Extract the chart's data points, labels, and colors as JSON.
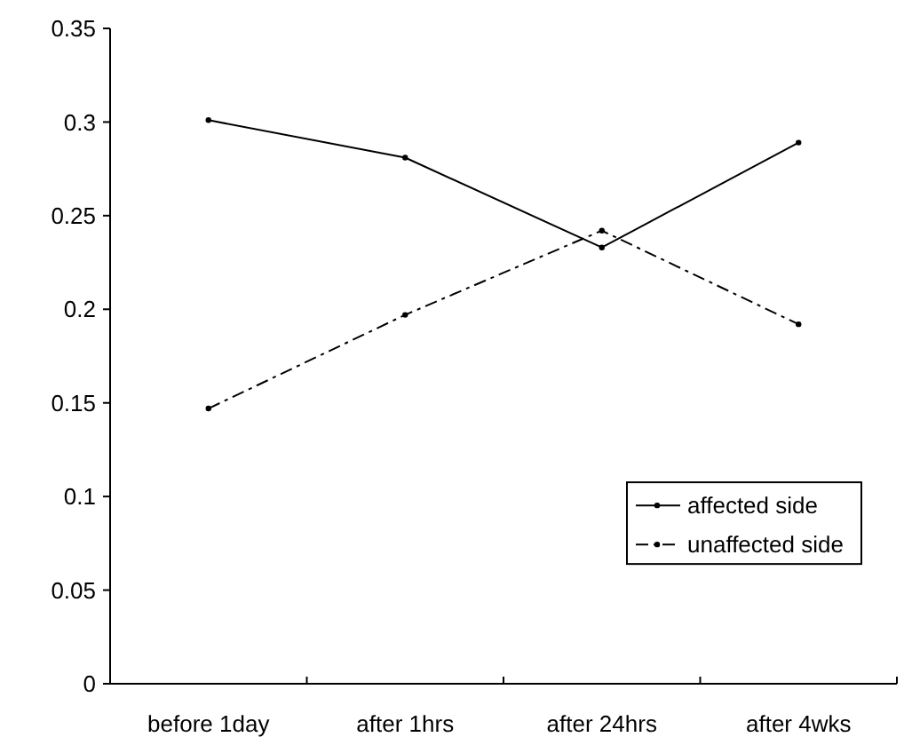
{
  "chart_data": {
    "type": "line",
    "categories": [
      "before 1day",
      "after 1hrs",
      "after 24hrs",
      "after 4wks"
    ],
    "series": [
      {
        "name": "affected side",
        "color": "#000000",
        "values": [
          0.301,
          0.281,
          0.233,
          0.289
        ],
        "line_style": "solid"
      },
      {
        "name": "unaffected side",
        "color": "#000000",
        "values": [
          0.147,
          0.197,
          0.242,
          0.192
        ],
        "line_style": "dashed"
      }
    ],
    "ylim": [
      0,
      0.35
    ],
    "yticks": [
      {
        "value": 0,
        "label": "0"
      },
      0.05,
      0.1,
      0.15,
      0.2,
      0.25,
      0.3,
      0.35
    ],
    "grid": false,
    "legend": "bottom right",
    "marker": "circle"
  }
}
